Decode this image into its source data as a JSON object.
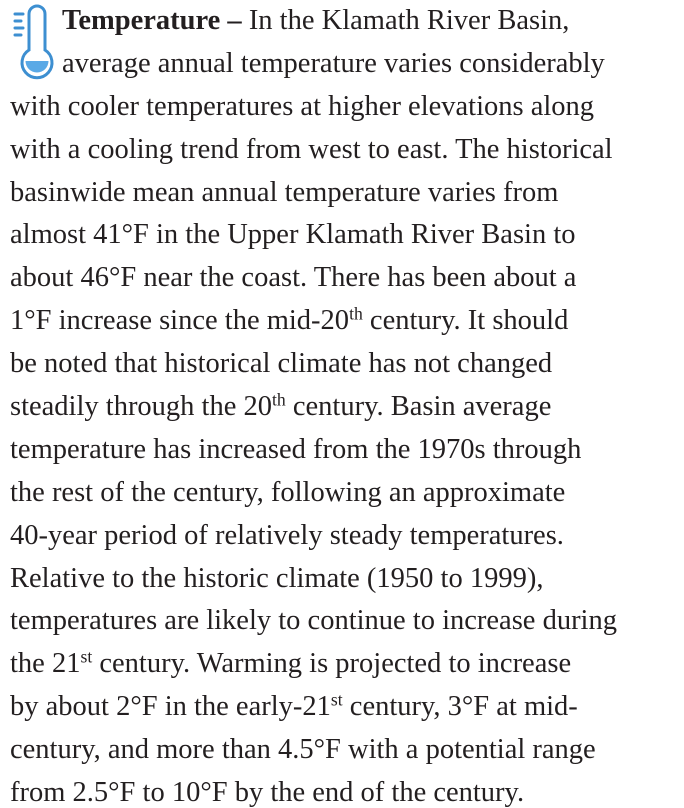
{
  "lines": [
    [
      {
        "bold": "Temperature –"
      },
      {
        "text": " In the Klamath River Basin,"
      }
    ],
    [
      {
        "text": "average annual temperature varies considerably"
      }
    ],
    [
      {
        "text": "with cooler temperatures at higher elevations along"
      }
    ],
    [
      {
        "text": "with a cooling trend from west to east. The historical"
      }
    ],
    [
      {
        "text": "basinwide mean annual temperature varies from"
      }
    ],
    [
      {
        "text": "almost 41°F in the Upper Klamath River Basin to"
      }
    ],
    [
      {
        "text": "about 46°F near the coast. There has been about a"
      }
    ],
    [
      {
        "text": "1°F increase since the mid-20"
      },
      {
        "sup": "th"
      },
      {
        "text": " century. It should"
      }
    ],
    [
      {
        "text": "be noted that historical climate has not changed"
      }
    ],
    [
      {
        "text": "steadily through the 20"
      },
      {
        "sup": "th"
      },
      {
        "text": " century. Basin average"
      }
    ],
    [
      {
        "text": "temperature has increased from the 1970s through"
      }
    ],
    [
      {
        "text": "the rest of the century, following an approximate"
      }
    ],
    [
      {
        "text": "40-year period of relatively steady temperatures."
      }
    ],
    [
      {
        "text": "Relative to the historic climate (1950 to 1999),"
      }
    ],
    [
      {
        "text": "temperatures are likely to continue to increase during"
      }
    ],
    [
      {
        "text": "the 21"
      },
      {
        "sup": "st"
      },
      {
        "text": " century. Warming is projected to increase"
      }
    ],
    [
      {
        "text": "by about 2°F in the early-21"
      },
      {
        "sup": "st"
      },
      {
        "text": " century, 3°F at mid-"
      }
    ],
    [
      {
        "text": "century, and more than 4.5°F with a potential range"
      }
    ],
    [
      {
        "text": "from 2.5°F to 10°F by the end of the century."
      }
    ]
  ]
}
